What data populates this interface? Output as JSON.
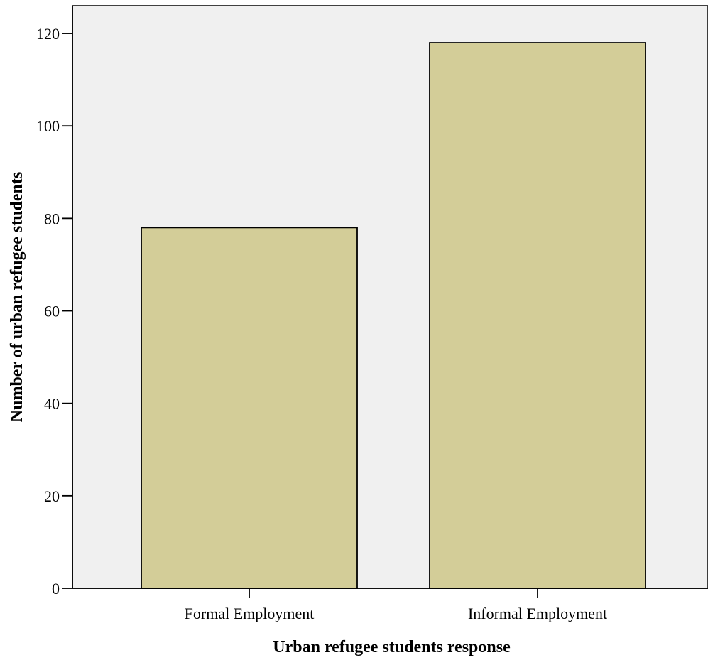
{
  "chart_data": {
    "type": "bar",
    "title": "",
    "xlabel": "Urban refugee students response",
    "ylabel": "Number of urban refugee students",
    "categories": [
      "Formal Employment",
      "Informal Employment"
    ],
    "values": [
      78,
      118
    ],
    "ylim": [
      0,
      126
    ],
    "yticks": [
      0,
      20,
      40,
      60,
      80,
      100,
      120
    ],
    "ytick_labels": [
      "0",
      "20",
      "40",
      "60",
      "80",
      "100",
      "120"
    ],
    "grid": false,
    "legend": "none",
    "colors": {
      "bar_fill": "#d3cd98",
      "bar_stroke": "#000000",
      "plot_background": "#f0f0f0",
      "axis": "#000000"
    }
  }
}
